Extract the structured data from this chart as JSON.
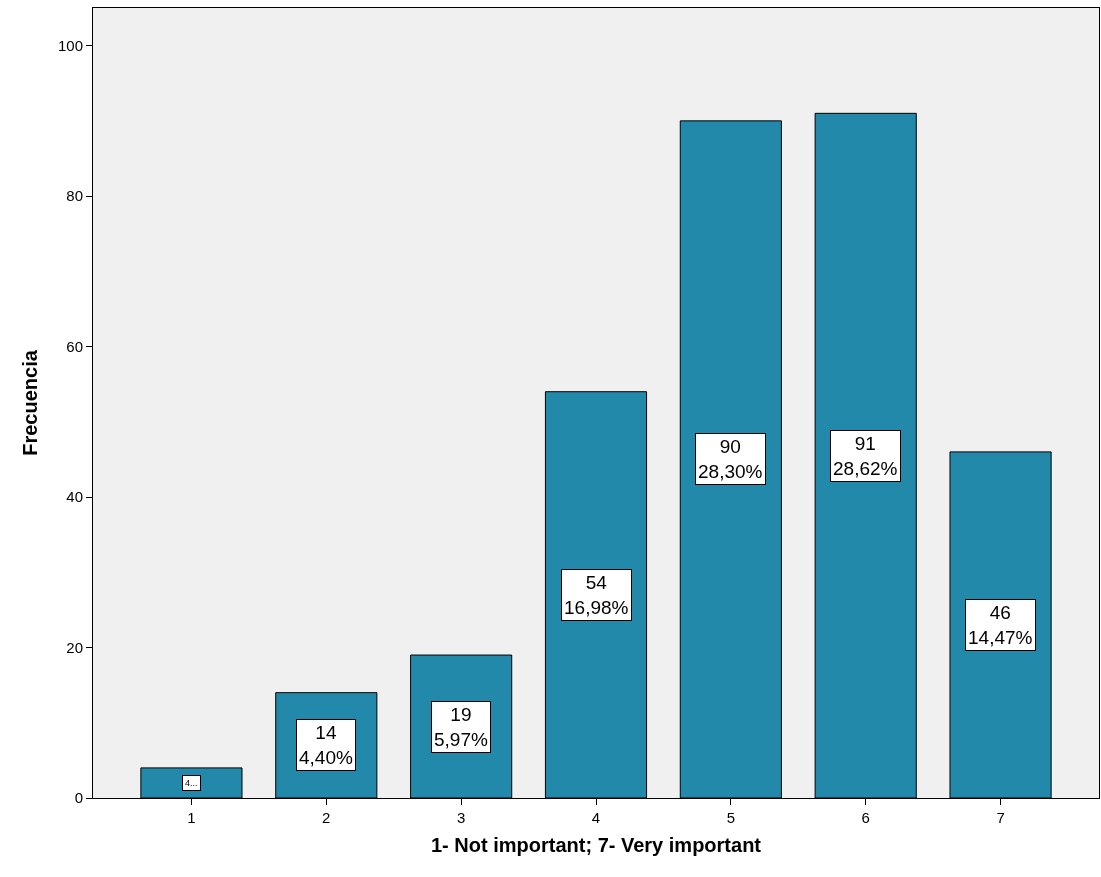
{
  "chart_data": {
    "type": "bar",
    "xlabel": "1- Not important; 7- Very important",
    "ylabel": "Frecuencia",
    "categories": [
      "1",
      "2",
      "3",
      "4",
      "5",
      "6",
      "7"
    ],
    "values": [
      4,
      14,
      19,
      54,
      90,
      91,
      46
    ],
    "value_labels": [
      "4...",
      "14\n4,40%",
      "19\n5,97%",
      "54\n16,98%",
      "90\n28,30%",
      "91\n28,62%",
      "46\n14,47%"
    ],
    "color": "#2389ab",
    "ylim": [
      0,
      105
    ],
    "yticks": [
      0,
      20,
      40,
      60,
      80,
      100
    ],
    "grid": false,
    "legend": false
  }
}
